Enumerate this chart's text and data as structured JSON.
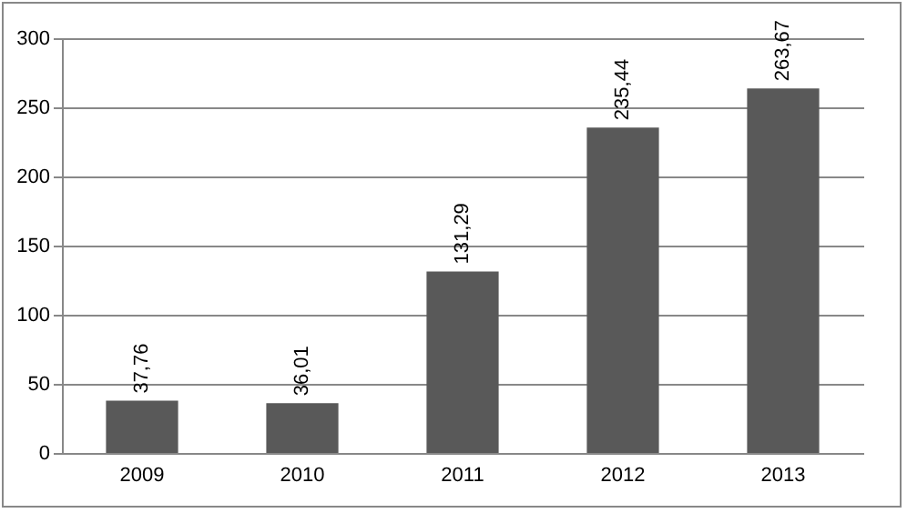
{
  "chart_data": {
    "type": "bar",
    "categories": [
      "2009",
      "2010",
      "2011",
      "2012",
      "2013"
    ],
    "values": [
      37.76,
      36.01,
      131.29,
      235.44,
      263.67
    ],
    "value_labels": [
      "37,76",
      "36,01",
      "131,29",
      "235,44",
      "263,67"
    ],
    "color": "#595959",
    "ylim": [
      0,
      300
    ],
    "yticks": [
      0,
      50,
      100,
      150,
      200,
      250,
      300
    ],
    "grid": "y"
  }
}
